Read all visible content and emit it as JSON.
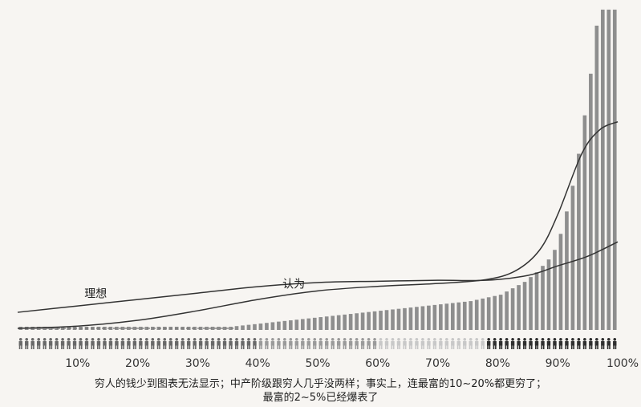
{
  "chart_data": {
    "type": "bar",
    "title": "",
    "xlabel": "",
    "ylabel": "",
    "x_ticks": [
      "10%",
      "20%",
      "30%",
      "40%",
      "50%",
      "60%",
      "70%",
      "80%",
      "90%",
      "100%"
    ],
    "bar_count": 100,
    "bar_color": "#8e8e8e",
    "bar_values": [
      1.0,
      1.0,
      1.0,
      1.0,
      1.0,
      1.0,
      1.0,
      1.0,
      1.0,
      1.0,
      1.0,
      1.0,
      1.0,
      1.0,
      1.0,
      1.0,
      1.0,
      1.0,
      1.0,
      1.0,
      1.0,
      1.0,
      1.0,
      1.0,
      1.0,
      1.0,
      1.0,
      1.0,
      1.0,
      1.0,
      1.0,
      1.0,
      1.0,
      1.0,
      1.0,
      1.0,
      1.2,
      1.4,
      1.6,
      1.8,
      2.0,
      2.2,
      2.4,
      2.6,
      2.8,
      3.0,
      3.2,
      3.4,
      3.6,
      3.8,
      4.0,
      4.2,
      4.4,
      4.6,
      4.8,
      5.0,
      5.2,
      5.4,
      5.6,
      5.8,
      6.0,
      6.2,
      6.4,
      6.6,
      6.8,
      7.0,
      7.2,
      7.4,
      7.6,
      7.8,
      8.0,
      8.2,
      8.4,
      8.6,
      8.8,
      9.0,
      9.4,
      9.8,
      10.2,
      10.6,
      11.0,
      12.0,
      13.0,
      14.0,
      15.0,
      16.5,
      18.0,
      20.0,
      22.0,
      25.0,
      30.0,
      37.0,
      45.0,
      55.0,
      67.0,
      80.0,
      95.0,
      110.0,
      110.0,
      110.0
    ],
    "lines": [
      {
        "name": "理想",
        "label_percentile": 13,
        "points": [
          [
            0,
            5.5
          ],
          [
            10,
            7.5
          ],
          [
            20,
            9.5
          ],
          [
            30,
            11.5
          ],
          [
            40,
            13.5
          ],
          [
            50,
            14.8
          ],
          [
            60,
            15.2
          ],
          [
            70,
            15.5
          ],
          [
            78,
            15.5
          ],
          [
            85,
            17.0
          ],
          [
            90,
            20.0
          ],
          [
            95,
            23.0
          ],
          [
            100,
            27.5
          ]
        ]
      },
      {
        "name": "认为",
        "label_percentile": 46,
        "points": [
          [
            0,
            0.5
          ],
          [
            10,
            1.2
          ],
          [
            20,
            3.0
          ],
          [
            30,
            6.0
          ],
          [
            40,
            9.5
          ],
          [
            50,
            12.2
          ],
          [
            60,
            13.6
          ],
          [
            70,
            14.5
          ],
          [
            78,
            15.7
          ],
          [
            83,
            18.5
          ],
          [
            87,
            25.0
          ],
          [
            90,
            36.0
          ],
          [
            94,
            55.0
          ],
          [
            97,
            62.5
          ],
          [
            100,
            65.0
          ]
        ]
      }
    ],
    "line_color": "#333333",
    "people_row": {
      "figure_count": 100,
      "groups": [
        {
          "from": 0,
          "to": 40,
          "color": "#686868"
        },
        {
          "from": 40,
          "to": 60,
          "color": "#9a9a9a"
        },
        {
          "from": 60,
          "to": 78,
          "color": "#c8c8c8"
        },
        {
          "from": 78,
          "to": 100,
          "color": "#2e2e2e"
        }
      ]
    },
    "dashed_baseline_until": 36,
    "grid": false,
    "legend": "none"
  },
  "caption": {
    "line1": "穷人的钱少到图表无法显示；中产阶级跟穷人几乎没两样；事实上，连最富的10~20%都更穷了；",
    "line2": "最富的2~5%已经爆表了"
  }
}
